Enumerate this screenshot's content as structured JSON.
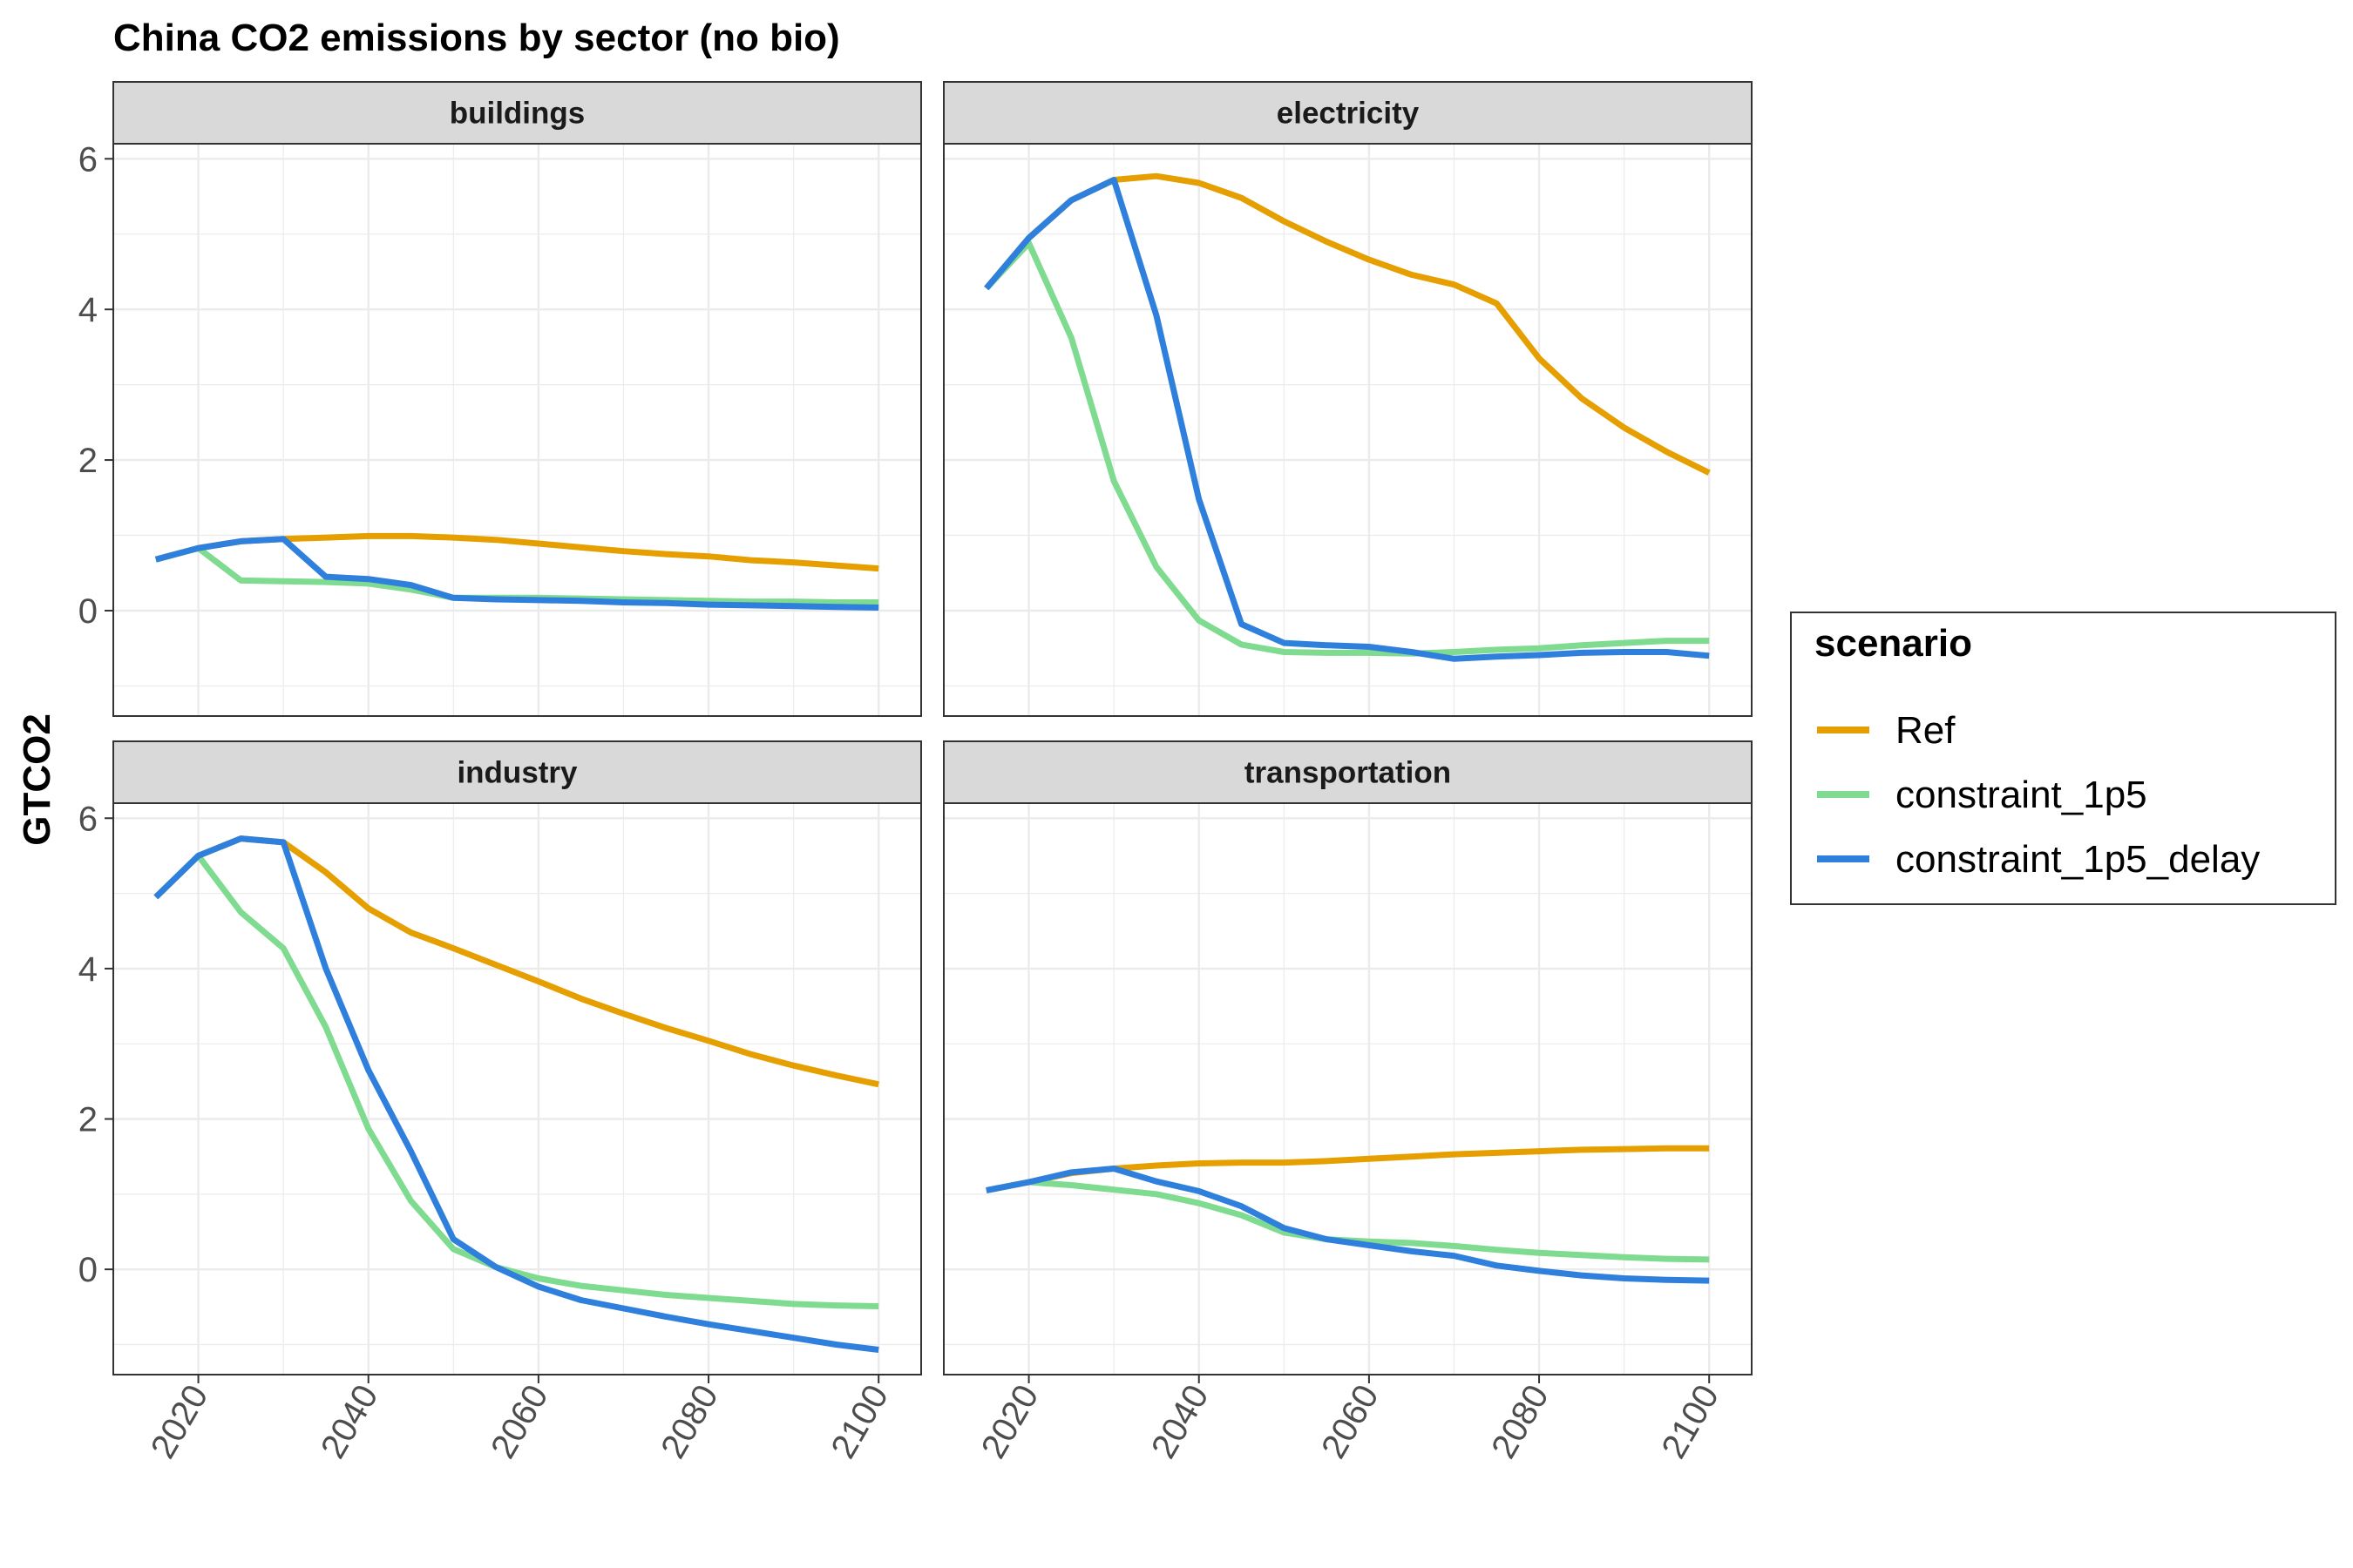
{
  "chart_data": {
    "type": "line",
    "title": "China CO2 emissions by sector (no bio)",
    "ylabel": "GTCO2",
    "xlabel": "",
    "x": [
      2015,
      2020,
      2025,
      2030,
      2035,
      2040,
      2045,
      2050,
      2055,
      2060,
      2065,
      2070,
      2075,
      2080,
      2085,
      2090,
      2095,
      2100
    ],
    "xlim": [
      2010,
      2105
    ],
    "ylim": [
      -1.4,
      6.2
    ],
    "x_ticks": [
      2020,
      2040,
      2060,
      2080,
      2100
    ],
    "y_ticks": [
      0,
      2,
      4,
      6
    ],
    "grid": true,
    "legend_position": "right",
    "legend": {
      "title": "scenario",
      "items": [
        {
          "name": "Ref",
          "color": "#E69F00"
        },
        {
          "name": "constraint_1p5",
          "color": "#7FDB8F"
        },
        {
          "name": "constraint_1p5_delay",
          "color": "#2F80DC"
        }
      ]
    },
    "panels": [
      {
        "name": "buildings",
        "series": [
          {
            "name": "Ref",
            "values": [
              0.68,
              0.83,
              0.92,
              0.95,
              0.97,
              0.99,
              0.99,
              0.97,
              0.94,
              0.89,
              0.84,
              0.79,
              0.75,
              0.72,
              0.67,
              0.64,
              0.6,
              0.56
            ]
          },
          {
            "name": "constraint_1p5",
            "values": [
              0.68,
              0.83,
              0.4,
              0.39,
              0.38,
              0.36,
              0.28,
              0.17,
              0.17,
              0.17,
              0.16,
              0.15,
              0.14,
              0.13,
              0.12,
              0.12,
              0.11,
              0.11
            ]
          },
          {
            "name": "constraint_1p5_delay",
            "values": [
              0.68,
              0.83,
              0.92,
              0.95,
              0.45,
              0.42,
              0.34,
              0.17,
              0.15,
              0.14,
              0.13,
              0.11,
              0.1,
              0.08,
              0.07,
              0.06,
              0.05,
              0.04
            ]
          }
        ]
      },
      {
        "name": "electricity",
        "series": [
          {
            "name": "Ref",
            "values": [
              4.28,
              4.95,
              5.45,
              5.72,
              5.77,
              5.68,
              5.48,
              5.17,
              4.9,
              4.66,
              4.46,
              4.33,
              4.08,
              3.35,
              2.82,
              2.43,
              2.11,
              1.83
            ]
          },
          {
            "name": "constraint_1p5",
            "values": [
              4.28,
              4.88,
              3.62,
              1.72,
              0.58,
              -0.13,
              -0.45,
              -0.55,
              -0.56,
              -0.56,
              -0.57,
              -0.55,
              -0.52,
              -0.5,
              -0.46,
              -0.43,
              -0.4,
              -0.4
            ]
          },
          {
            "name": "constraint_1p5_delay",
            "values": [
              4.28,
              4.95,
              5.45,
              5.72,
              3.92,
              1.48,
              -0.18,
              -0.43,
              -0.46,
              -0.48,
              -0.55,
              -0.64,
              -0.61,
              -0.59,
              -0.56,
              -0.55,
              -0.55,
              -0.6
            ]
          }
        ]
      },
      {
        "name": "industry",
        "series": [
          {
            "name": "Ref",
            "values": [
              4.95,
              5.5,
              5.73,
              5.68,
              5.28,
              4.8,
              4.48,
              4.27,
              4.05,
              3.83,
              3.6,
              3.4,
              3.21,
              3.04,
              2.86,
              2.71,
              2.58,
              2.46
            ]
          },
          {
            "name": "constraint_1p5",
            "values": [
              4.95,
              5.5,
              4.75,
              4.27,
              3.22,
              1.87,
              0.91,
              0.27,
              0.03,
              -0.12,
              -0.22,
              -0.28,
              -0.34,
              -0.38,
              -0.42,
              -0.46,
              -0.48,
              -0.49
            ]
          },
          {
            "name": "constraint_1p5_delay",
            "values": [
              4.95,
              5.5,
              5.73,
              5.68,
              4.0,
              2.65,
              1.57,
              0.4,
              0.03,
              -0.23,
              -0.41,
              -0.52,
              -0.63,
              -0.73,
              -0.82,
              -0.91,
              -1.0,
              -1.07
            ]
          }
        ]
      },
      {
        "name": "transportation",
        "series": [
          {
            "name": "Ref",
            "values": [
              1.05,
              1.16,
              1.28,
              1.34,
              1.38,
              1.41,
              1.42,
              1.42,
              1.44,
              1.47,
              1.5,
              1.53,
              1.55,
              1.57,
              1.59,
              1.6,
              1.61,
              1.61
            ]
          },
          {
            "name": "constraint_1p5",
            "values": [
              1.05,
              1.16,
              1.12,
              1.06,
              1.0,
              0.88,
              0.72,
              0.49,
              0.4,
              0.37,
              0.35,
              0.31,
              0.26,
              0.22,
              0.19,
              0.16,
              0.14,
              0.13
            ]
          },
          {
            "name": "constraint_1p5_delay",
            "values": [
              1.05,
              1.16,
              1.29,
              1.34,
              1.17,
              1.04,
              0.84,
              0.55,
              0.4,
              0.32,
              0.24,
              0.18,
              0.05,
              -0.02,
              -0.08,
              -0.12,
              -0.14,
              -0.15
            ]
          }
        ]
      }
    ]
  }
}
